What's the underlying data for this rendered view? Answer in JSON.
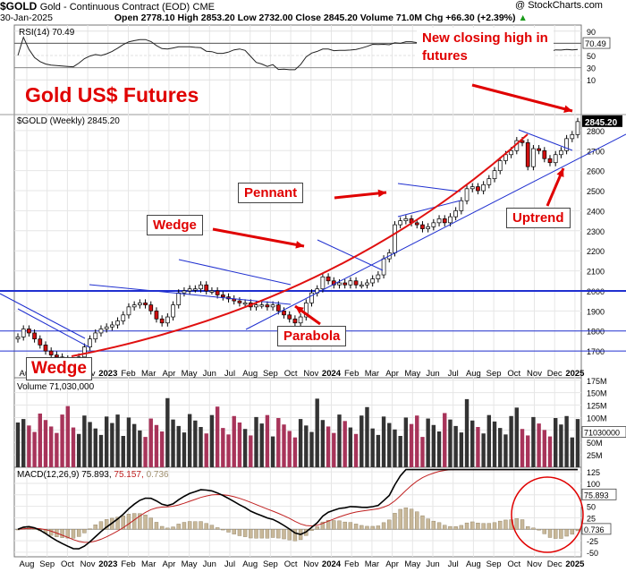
{
  "header": {
    "symbol": "$GOLD",
    "name": "Gold - Continuous Contract (EOD)",
    "exchange": "CME",
    "copyright": "@ StockCharts.com",
    "date": "30-Jan-2025",
    "ohlc": "Open 2778.10  High 2853.20  Low 2732.00  Close 2845.20  Volume 71.0M  Chg +66.30 (+2.39%)",
    "chg_arrow": "▲"
  },
  "panels": {
    "rsi_label": "RSI(14) 70.49",
    "rsi_value": "70.49",
    "price_label": "$GOLD (Weekly) 2845.20",
    "price_value": "2845.20",
    "volume_label": "Volume 71,030,000",
    "volume_value": "71030000",
    "macd_label": "MACD(12,26,9)",
    "macd_values": [
      "75.893",
      "75.157",
      "0.736"
    ],
    "macd_value1": "75.893",
    "macd_value2": "0.736"
  },
  "annotations": {
    "main_title": "Gold US$ Futures",
    "new_high_line1": "New closing high in",
    "new_high_line2": "futures",
    "pennant": "Pennant",
    "wedge_mid": "Wedge",
    "wedge_low": "Wedge",
    "uptrend": "Uptrend",
    "parabola": "Parabola"
  },
  "colors": {
    "up_candle": "#ffffff",
    "down_candle": "#d01010",
    "trendline": "#2030d0",
    "parabola": "#e01010",
    "annotation_text": "#e00000",
    "volume_up": "#333333",
    "volume_down": "#a8345a",
    "macd_hist": "#c8b89a"
  },
  "chart_data": {
    "type": "line",
    "title": "$GOLD (Weekly)",
    "x_axis_labels": [
      "Aug",
      "Sep",
      "Oct",
      "Nov",
      "2023",
      "Feb",
      "Mar",
      "Apr",
      "May",
      "Jun",
      "Jul",
      "Aug",
      "Sep",
      "Oct",
      "Nov",
      "2024",
      "Feb",
      "Mar",
      "Apr",
      "May",
      "Jun",
      "Jul",
      "Aug",
      "Sep",
      "Oct",
      "Nov",
      "Dec",
      "2025"
    ],
    "price": {
      "y_ticks": [
        1700,
        1800,
        1900,
        2000,
        2100,
        2200,
        2300,
        2400,
        2500,
        2600,
        2700,
        2800
      ],
      "ylim": [
        1620,
        2880
      ],
      "weekly_close": [
        1770,
        1810,
        1790,
        1760,
        1730,
        1700,
        1680,
        1670,
        1660,
        1650,
        1640,
        1670,
        1720,
        1760,
        1790,
        1810,
        1820,
        1830,
        1850,
        1880,
        1920,
        1930,
        1940,
        1930,
        1900,
        1860,
        1840,
        1870,
        1930,
        1990,
        2000,
        2010,
        2010,
        2030,
        2000,
        2000,
        1980,
        1970,
        1960,
        1950,
        1940,
        1940,
        1920,
        1930,
        1930,
        1920,
        1930,
        1900,
        1880,
        1860,
        1840,
        1870,
        1940,
        1990,
        2010,
        2070,
        2050,
        2030,
        2040,
        2030,
        2050,
        2030,
        2030,
        2040,
        2060,
        2080,
        2160,
        2190,
        2330,
        2350,
        2360,
        2340,
        2330,
        2310,
        2320,
        2340,
        2360,
        2340,
        2370,
        2400,
        2450,
        2510,
        2520,
        2500,
        2530,
        2560,
        2600,
        2650,
        2680,
        2700,
        2750,
        2740,
        2620,
        2710,
        2700,
        2660,
        2640,
        2680,
        2700,
        2760,
        2780,
        2845
      ]
    },
    "rsi": {
      "name": "RSI(14)",
      "last": 70.49,
      "y_ticks": [
        10,
        30,
        50,
        70,
        90
      ],
      "ylim": [
        0,
        100
      ]
    },
    "volume": {
      "y_ticks": [
        "25M",
        "50M",
        "75M",
        "100M",
        "125M",
        "150M",
        "175M"
      ],
      "ylim": [
        0,
        180
      ],
      "last": 71030000
    },
    "macd": {
      "params": "12,26,9",
      "macd_last": 75.893,
      "signal_last": 75.157,
      "hist_last": 0.736,
      "y_ticks": [
        -50,
        -25,
        0,
        25,
        50,
        75,
        100,
        125
      ],
      "ylim": [
        -60,
        135
      ]
    }
  }
}
